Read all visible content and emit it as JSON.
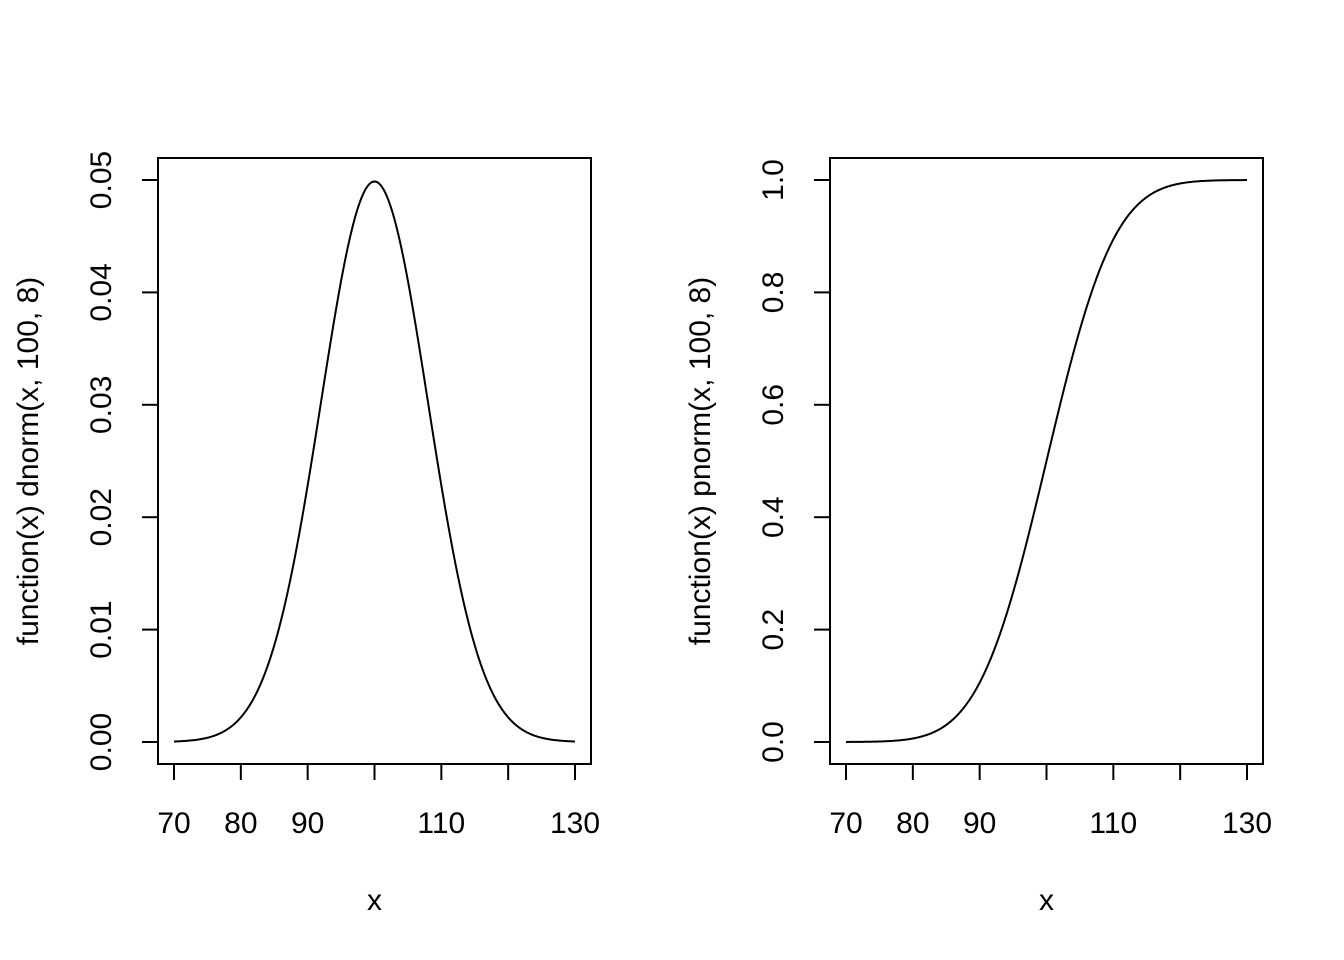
{
  "chart_data": [
    {
      "type": "line",
      "function": "dnorm",
      "mean": 100,
      "sd": 8,
      "xlabel": "x",
      "ylabel": "function(x) dnorm(x, 100, 8)",
      "xlim": [
        70,
        130
      ],
      "ylim": [
        0,
        0.05
      ],
      "xticks": [
        70,
        80,
        90,
        100,
        110,
        120,
        130
      ],
      "xtick_labels": [
        "70",
        "80",
        "90",
        "",
        "110",
        "",
        "130"
      ],
      "yticks": [
        0,
        0.01,
        0.02,
        0.03,
        0.04,
        0.05
      ],
      "ytick_labels": [
        "0.00",
        "0.01",
        "0.02",
        "0.03",
        "0.04",
        "0.05"
      ],
      "series": [
        {
          "x": [
            70,
            75,
            80,
            85,
            90,
            95,
            100,
            105,
            110,
            115,
            120,
            125,
            130
          ],
          "y": [
            5e-05,
            0.0004,
            0.0023,
            0.0086,
            0.0228,
            0.041,
            0.0499,
            0.041,
            0.0228,
            0.0086,
            0.0023,
            0.0004,
            5e-05
          ]
        }
      ],
      "grid": false
    },
    {
      "type": "line",
      "function": "pnorm",
      "mean": 100,
      "sd": 8,
      "xlabel": "x",
      "ylabel": "function(x) pnorm(x, 100, 8)",
      "xlim": [
        70,
        130
      ],
      "ylim": [
        0,
        1
      ],
      "xticks": [
        70,
        80,
        90,
        100,
        110,
        120,
        130
      ],
      "xtick_labels": [
        "70",
        "80",
        "90",
        "",
        "110",
        "",
        "130"
      ],
      "yticks": [
        0,
        0.2,
        0.4,
        0.6,
        0.8,
        1.0
      ],
      "ytick_labels": [
        "0.0",
        "0.2",
        "0.4",
        "0.6",
        "0.8",
        "1.0"
      ],
      "series": [
        {
          "x": [
            70,
            75,
            80,
            85,
            90,
            95,
            100,
            105,
            110,
            115,
            120,
            125,
            130
          ],
          "y": [
            0.0001,
            0.0009,
            0.0062,
            0.0304,
            0.1056,
            0.266,
            0.5,
            0.734,
            0.8944,
            0.9696,
            0.9938,
            0.9991,
            0.9999
          ]
        }
      ],
      "grid": false
    }
  ]
}
